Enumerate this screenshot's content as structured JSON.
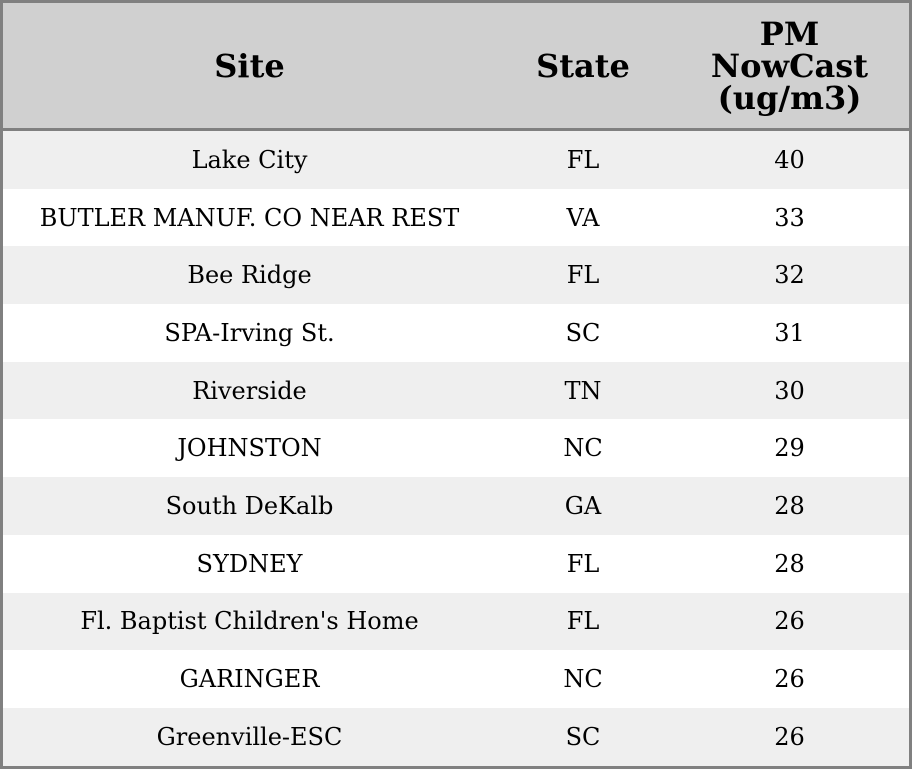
{
  "chart_data": {
    "type": "table",
    "columns": [
      "Site",
      "State",
      "PM NowCast (ug/m3)"
    ],
    "rows": [
      [
        "Lake City",
        "FL",
        "40"
      ],
      [
        "BUTLER MANUF. CO NEAR REST",
        "VA",
        "33"
      ],
      [
        "Bee Ridge",
        "FL",
        "32"
      ],
      [
        "SPA-Irving St.",
        "SC",
        "31"
      ],
      [
        "Riverside",
        "TN",
        "30"
      ],
      [
        "JOHNSTON",
        "NC",
        "29"
      ],
      [
        "South DeKalb",
        "GA",
        "28"
      ],
      [
        "SYDNEY",
        "FL",
        "28"
      ],
      [
        "Fl. Baptist Children's Home",
        "FL",
        "26"
      ],
      [
        "GARINGER",
        "NC",
        "26"
      ],
      [
        "Greenville-ESC",
        "SC",
        "26"
      ]
    ],
    "colors": {
      "header_bg": "#d0d0d0",
      "stripe_bg": "#efefef",
      "border": "#808080"
    }
  }
}
